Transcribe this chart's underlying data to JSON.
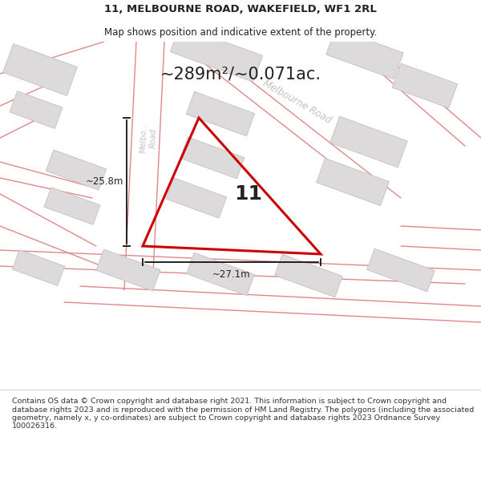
{
  "title_line1": "11, MELBOURNE ROAD, WAKEFIELD, WF1 2RL",
  "title_line2": "Map shows position and indicative extent of the property.",
  "area_text": "~289m²/~0.071ac.",
  "label_number": "11",
  "dim_vertical": "~25.8m",
  "dim_horizontal": "~27.1m",
  "road_label_diag": "Melbourne Road",
  "road_label_vert": "Melbo… Road",
  "footer_text": "Contains OS data © Crown copyright and database right 2021. This information is subject to Crown copyright and database rights 2023 and is reproduced with the permission of HM Land Registry. The polygons (including the associated geometry, namely x, y co-ordinates) are subject to Crown copyright and database rights 2023 Ordnance Survey 100026316.",
  "map_bg": "#eeecec",
  "polygon_color": "#cc0000",
  "building_fill": "#dcdada",
  "building_edge": "#c8c0c0",
  "road_line_color": "#e08888",
  "road_label_color": "#bbbbbb",
  "dim_line_color": "#111111",
  "text_color": "#222222",
  "footer_color": "#333333",
  "white": "#ffffff"
}
